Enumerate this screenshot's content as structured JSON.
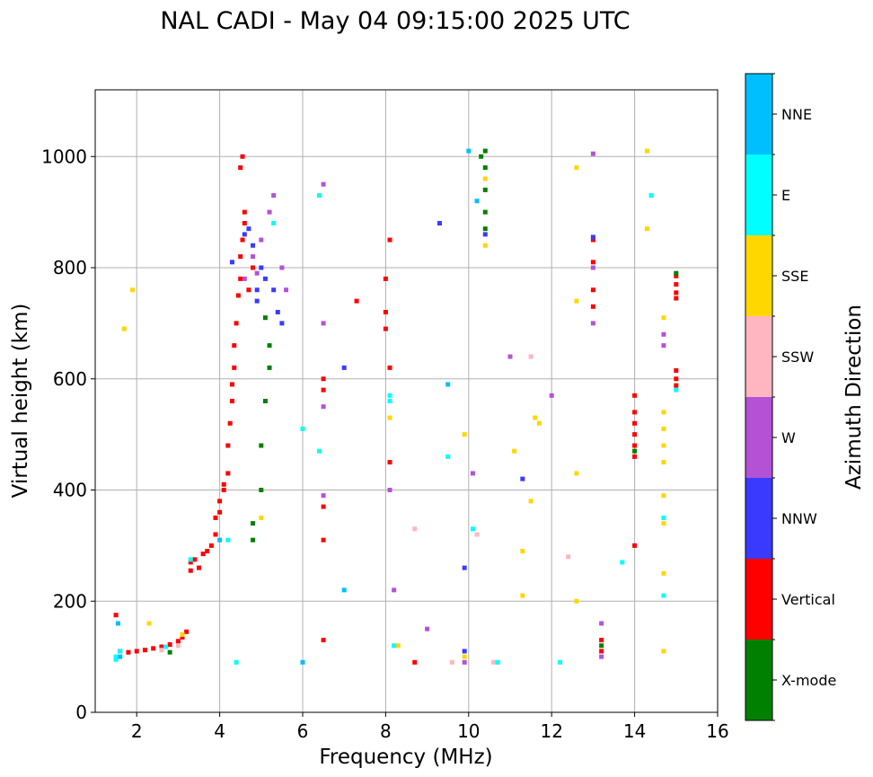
{
  "chart_data": {
    "type": "scatter",
    "title": "NAL CADI - May 04 09:15:00 2025 UTC",
    "xlabel": "Frequency (MHz)",
    "ylabel": "Virtual height (km)",
    "xlim": [
      1,
      16
    ],
    "ylim": [
      0,
      1120
    ],
    "xticks": [
      2,
      4,
      6,
      8,
      10,
      12,
      14,
      16
    ],
    "yticks": [
      0,
      200,
      400,
      600,
      800,
      1000
    ],
    "grid": true,
    "colorbar": {
      "label": "Azimuth Direction",
      "categories": [
        {
          "name": "X-mode",
          "color": "#008000"
        },
        {
          "name": "Vertical",
          "color": "#ff0000"
        },
        {
          "name": "NNW",
          "color": "#3a3aff"
        },
        {
          "name": "W",
          "color": "#b452d6"
        },
        {
          "name": "SSW",
          "color": "#ffb6c1"
        },
        {
          "name": "SSE",
          "color": "#ffd700"
        },
        {
          "name": "E",
          "color": "#00ffff"
        },
        {
          "name": "NNE",
          "color": "#00bfff"
        }
      ]
    },
    "series": [
      {
        "name": "Vertical",
        "points": [
          [
            1.5,
            175
          ],
          [
            1.6,
            110
          ],
          [
            1.8,
            108
          ],
          [
            2.0,
            110
          ],
          [
            2.2,
            112
          ],
          [
            2.4,
            115
          ],
          [
            2.6,
            118
          ],
          [
            2.8,
            122
          ],
          [
            3.0,
            128
          ],
          [
            3.1,
            135
          ],
          [
            3.2,
            145
          ],
          [
            3.3,
            255
          ],
          [
            3.3,
            270
          ],
          [
            3.4,
            275
          ],
          [
            3.5,
            260
          ],
          [
            3.6,
            285
          ],
          [
            3.7,
            290
          ],
          [
            3.8,
            300
          ],
          [
            3.9,
            320
          ],
          [
            3.9,
            350
          ],
          [
            4.0,
            360
          ],
          [
            4.0,
            380
          ],
          [
            4.1,
            400
          ],
          [
            4.1,
            410
          ],
          [
            4.2,
            430
          ],
          [
            4.2,
            480
          ],
          [
            4.25,
            520
          ],
          [
            4.3,
            560
          ],
          [
            4.3,
            590
          ],
          [
            4.35,
            620
          ],
          [
            4.35,
            660
          ],
          [
            4.4,
            700
          ],
          [
            4.45,
            750
          ],
          [
            4.5,
            780
          ],
          [
            4.5,
            820
          ],
          [
            4.55,
            850
          ],
          [
            4.6,
            880
          ],
          [
            4.5,
            980
          ],
          [
            4.55,
            1000
          ],
          [
            4.6,
            900
          ],
          [
            4.7,
            760
          ],
          [
            4.8,
            800
          ],
          [
            6.5,
            310
          ],
          [
            6.5,
            370
          ],
          [
            6.5,
            580
          ],
          [
            6.5,
            600
          ],
          [
            6.5,
            130
          ],
          [
            7.3,
            740
          ],
          [
            8.0,
            780
          ],
          [
            8.0,
            720
          ],
          [
            8.1,
            850
          ],
          [
            8.1,
            620
          ],
          [
            8.1,
            450
          ],
          [
            8.0,
            690
          ],
          [
            8.7,
            90
          ],
          [
            13.0,
            850
          ],
          [
            13.0,
            810
          ],
          [
            13.0,
            760
          ],
          [
            13.0,
            730
          ],
          [
            13.2,
            130
          ],
          [
            13.2,
            110
          ],
          [
            14.0,
            300
          ],
          [
            14.0,
            570
          ],
          [
            14.0,
            540
          ],
          [
            14.0,
            520
          ],
          [
            14.0,
            500
          ],
          [
            14.0,
            480
          ],
          [
            14.0,
            460
          ],
          [
            15.0,
            785
          ],
          [
            15.0,
            770
          ],
          [
            15.0,
            755
          ],
          [
            15.0,
            745
          ],
          [
            15.0,
            615
          ],
          [
            15.0,
            600
          ],
          [
            15.0,
            588
          ]
        ]
      },
      {
        "name": "X-mode",
        "points": [
          [
            2.8,
            108
          ],
          [
            4.8,
            310
          ],
          [
            4.8,
            340
          ],
          [
            5.0,
            400
          ],
          [
            5.0,
            480
          ],
          [
            5.1,
            560
          ],
          [
            5.2,
            620
          ],
          [
            5.2,
            660
          ],
          [
            5.1,
            710
          ],
          [
            10.4,
            1010
          ],
          [
            10.4,
            980
          ],
          [
            10.4,
            940
          ],
          [
            10.4,
            900
          ],
          [
            10.4,
            870
          ],
          [
            10.3,
            1000
          ],
          [
            14.0,
            470
          ],
          [
            13.2,
            120
          ],
          [
            15.0,
            790
          ]
        ]
      },
      {
        "name": "NNW",
        "points": [
          [
            4.3,
            810
          ],
          [
            4.6,
            860
          ],
          [
            4.7,
            870
          ],
          [
            4.8,
            840
          ],
          [
            4.9,
            760
          ],
          [
            5.0,
            800
          ],
          [
            5.1,
            780
          ],
          [
            5.3,
            760
          ],
          [
            5.4,
            720
          ],
          [
            5.5,
            700
          ],
          [
            4.9,
            740
          ],
          [
            7.0,
            620
          ],
          [
            9.3,
            880
          ],
          [
            9.9,
            260
          ],
          [
            9.9,
            110
          ],
          [
            10.4,
            860
          ],
          [
            11.3,
            420
          ],
          [
            13.0,
            855
          ]
        ]
      },
      {
        "name": "W",
        "points": [
          [
            4.6,
            780
          ],
          [
            4.8,
            820
          ],
          [
            4.9,
            790
          ],
          [
            5.0,
            850
          ],
          [
            5.2,
            900
          ],
          [
            5.3,
            930
          ],
          [
            5.5,
            800
          ],
          [
            5.6,
            760
          ],
          [
            6.5,
            950
          ],
          [
            6.5,
            700
          ],
          [
            6.5,
            550
          ],
          [
            6.5,
            390
          ],
          [
            8.1,
            400
          ],
          [
            8.2,
            220
          ],
          [
            9.0,
            150
          ],
          [
            9.9,
            90
          ],
          [
            10.1,
            430
          ],
          [
            11.0,
            640
          ],
          [
            12.0,
            570
          ],
          [
            13.0,
            1005
          ],
          [
            13.0,
            800
          ],
          [
            13.0,
            700
          ],
          [
            13.2,
            160
          ],
          [
            13.2,
            100
          ],
          [
            14.7,
            680
          ],
          [
            14.7,
            660
          ]
        ]
      },
      {
        "name": "SSW",
        "points": [
          [
            2.6,
            112
          ],
          [
            3.0,
            120
          ],
          [
            8.7,
            330
          ],
          [
            9.6,
            90
          ],
          [
            10.6,
            90
          ],
          [
            10.2,
            320
          ],
          [
            11.5,
            640
          ],
          [
            12.4,
            280
          ]
        ]
      },
      {
        "name": "SSE",
        "points": [
          [
            1.7,
            690
          ],
          [
            1.9,
            760
          ],
          [
            2.3,
            160
          ],
          [
            3.1,
            140
          ],
          [
            5.0,
            350
          ],
          [
            8.1,
            530
          ],
          [
            8.3,
            120
          ],
          [
            9.9,
            100
          ],
          [
            9.9,
            500
          ],
          [
            10.4,
            960
          ],
          [
            10.4,
            840
          ],
          [
            11.1,
            470
          ],
          [
            11.3,
            290
          ],
          [
            11.3,
            210
          ],
          [
            11.5,
            380
          ],
          [
            11.6,
            530
          ],
          [
            11.7,
            520
          ],
          [
            12.6,
            980
          ],
          [
            12.6,
            740
          ],
          [
            12.6,
            430
          ],
          [
            12.6,
            200
          ],
          [
            14.7,
            540
          ],
          [
            14.7,
            510
          ],
          [
            14.7,
            480
          ],
          [
            14.7,
            450
          ],
          [
            14.7,
            390
          ],
          [
            14.7,
            340
          ],
          [
            14.7,
            250
          ],
          [
            14.7,
            110
          ],
          [
            14.7,
            710
          ],
          [
            14.3,
            870
          ],
          [
            14.3,
            1010
          ]
        ]
      },
      {
        "name": "E",
        "points": [
          [
            1.5,
            100
          ],
          [
            1.5,
            95
          ],
          [
            1.6,
            110
          ],
          [
            2.7,
            118
          ],
          [
            3.3,
            275
          ],
          [
            4.2,
            310
          ],
          [
            4.4,
            90
          ],
          [
            5.3,
            880
          ],
          [
            6.0,
            510
          ],
          [
            6.4,
            470
          ],
          [
            6.4,
            930
          ],
          [
            8.1,
            560
          ],
          [
            8.2,
            120
          ],
          [
            9.5,
            460
          ],
          [
            10.1,
            330
          ],
          [
            10.7,
            90
          ],
          [
            12.2,
            90
          ],
          [
            13.7,
            270
          ],
          [
            14.4,
            930
          ],
          [
            14.7,
            350
          ],
          [
            14.7,
            210
          ],
          [
            15.0,
            580
          ],
          [
            8.1,
            570
          ]
        ]
      },
      {
        "name": "NNE",
        "points": [
          [
            1.55,
            160
          ],
          [
            1.6,
            100
          ],
          [
            4.0,
            310
          ],
          [
            6.0,
            90
          ],
          [
            7.0,
            220
          ],
          [
            9.5,
            590
          ],
          [
            10.0,
            1010
          ],
          [
            10.2,
            920
          ]
        ]
      }
    ]
  }
}
